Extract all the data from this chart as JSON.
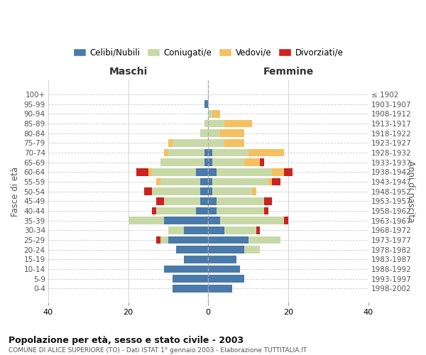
{
  "age_groups": [
    "0-4",
    "5-9",
    "10-14",
    "15-19",
    "20-24",
    "25-29",
    "30-34",
    "35-39",
    "40-44",
    "45-49",
    "50-54",
    "55-59",
    "60-64",
    "65-69",
    "70-74",
    "75-79",
    "80-84",
    "85-89",
    "90-94",
    "95-99",
    "100+"
  ],
  "birth_years": [
    "1998-2002",
    "1993-1997",
    "1988-1992",
    "1983-1987",
    "1978-1982",
    "1973-1977",
    "1968-1972",
    "1963-1967",
    "1958-1962",
    "1953-1957",
    "1948-1952",
    "1943-1947",
    "1938-1942",
    "1933-1937",
    "1928-1932",
    "1923-1927",
    "1918-1922",
    "1913-1917",
    "1908-1912",
    "1903-1907",
    "≤ 1902"
  ],
  "males": {
    "celibi": [
      9,
      9,
      11,
      6,
      8,
      10,
      6,
      11,
      3,
      2,
      2,
      2,
      3,
      1,
      1,
      0,
      0,
      0,
      0,
      1,
      0
    ],
    "coniugati": [
      0,
      0,
      0,
      0,
      0,
      2,
      4,
      9,
      10,
      9,
      12,
      10,
      11,
      11,
      9,
      9,
      2,
      1,
      0,
      0,
      0
    ],
    "vedovi": [
      0,
      0,
      0,
      0,
      0,
      0,
      0,
      0,
      0,
      0,
      0,
      1,
      1,
      0,
      1,
      1,
      0,
      0,
      0,
      0,
      0
    ],
    "divorziati": [
      0,
      0,
      0,
      0,
      0,
      1,
      0,
      0,
      1,
      2,
      2,
      0,
      3,
      0,
      0,
      0,
      0,
      0,
      0,
      0,
      0
    ]
  },
  "females": {
    "nubili": [
      6,
      9,
      8,
      7,
      9,
      10,
      4,
      3,
      2,
      2,
      1,
      1,
      2,
      1,
      1,
      0,
      0,
      0,
      0,
      0,
      0
    ],
    "coniugate": [
      0,
      0,
      0,
      0,
      4,
      8,
      8,
      16,
      12,
      12,
      10,
      14,
      14,
      8,
      9,
      4,
      3,
      4,
      1,
      0,
      0
    ],
    "vedove": [
      0,
      0,
      0,
      0,
      0,
      0,
      0,
      0,
      0,
      0,
      1,
      1,
      3,
      4,
      9,
      5,
      6,
      7,
      2,
      0,
      0
    ],
    "divorziate": [
      0,
      0,
      0,
      0,
      0,
      0,
      1,
      1,
      1,
      2,
      0,
      2,
      2,
      1,
      0,
      0,
      0,
      0,
      0,
      0,
      0
    ]
  },
  "colors": {
    "celibi_nubili": "#4a7aaa",
    "coniugati_e": "#c8d9a8",
    "vedovi_e": "#f5c060",
    "divorziati_e": "#cc2222"
  },
  "xlim": [
    -40,
    40
  ],
  "xticks": [
    -40,
    -20,
    0,
    20,
    40
  ],
  "xticklabels": [
    "40",
    "20",
    "0",
    "20",
    "40"
  ],
  "title": "Popolazione per età, sesso e stato civile - 2003",
  "subtitle": "COMUNE DI ALICE SUPERIORE (TO) - Dati ISTAT 1° gennaio 2003 - Elaborazione TUTTITALIA.IT",
  "ylabel_left": "Fasce di età",
  "ylabel_right": "Anni di nascita",
  "header_maschi": "Maschi",
  "header_femmine": "Femmine",
  "legend_labels": [
    "Celibi/Nubili",
    "Coniugati/e",
    "Vedovi/e",
    "Divorziati/e"
  ]
}
